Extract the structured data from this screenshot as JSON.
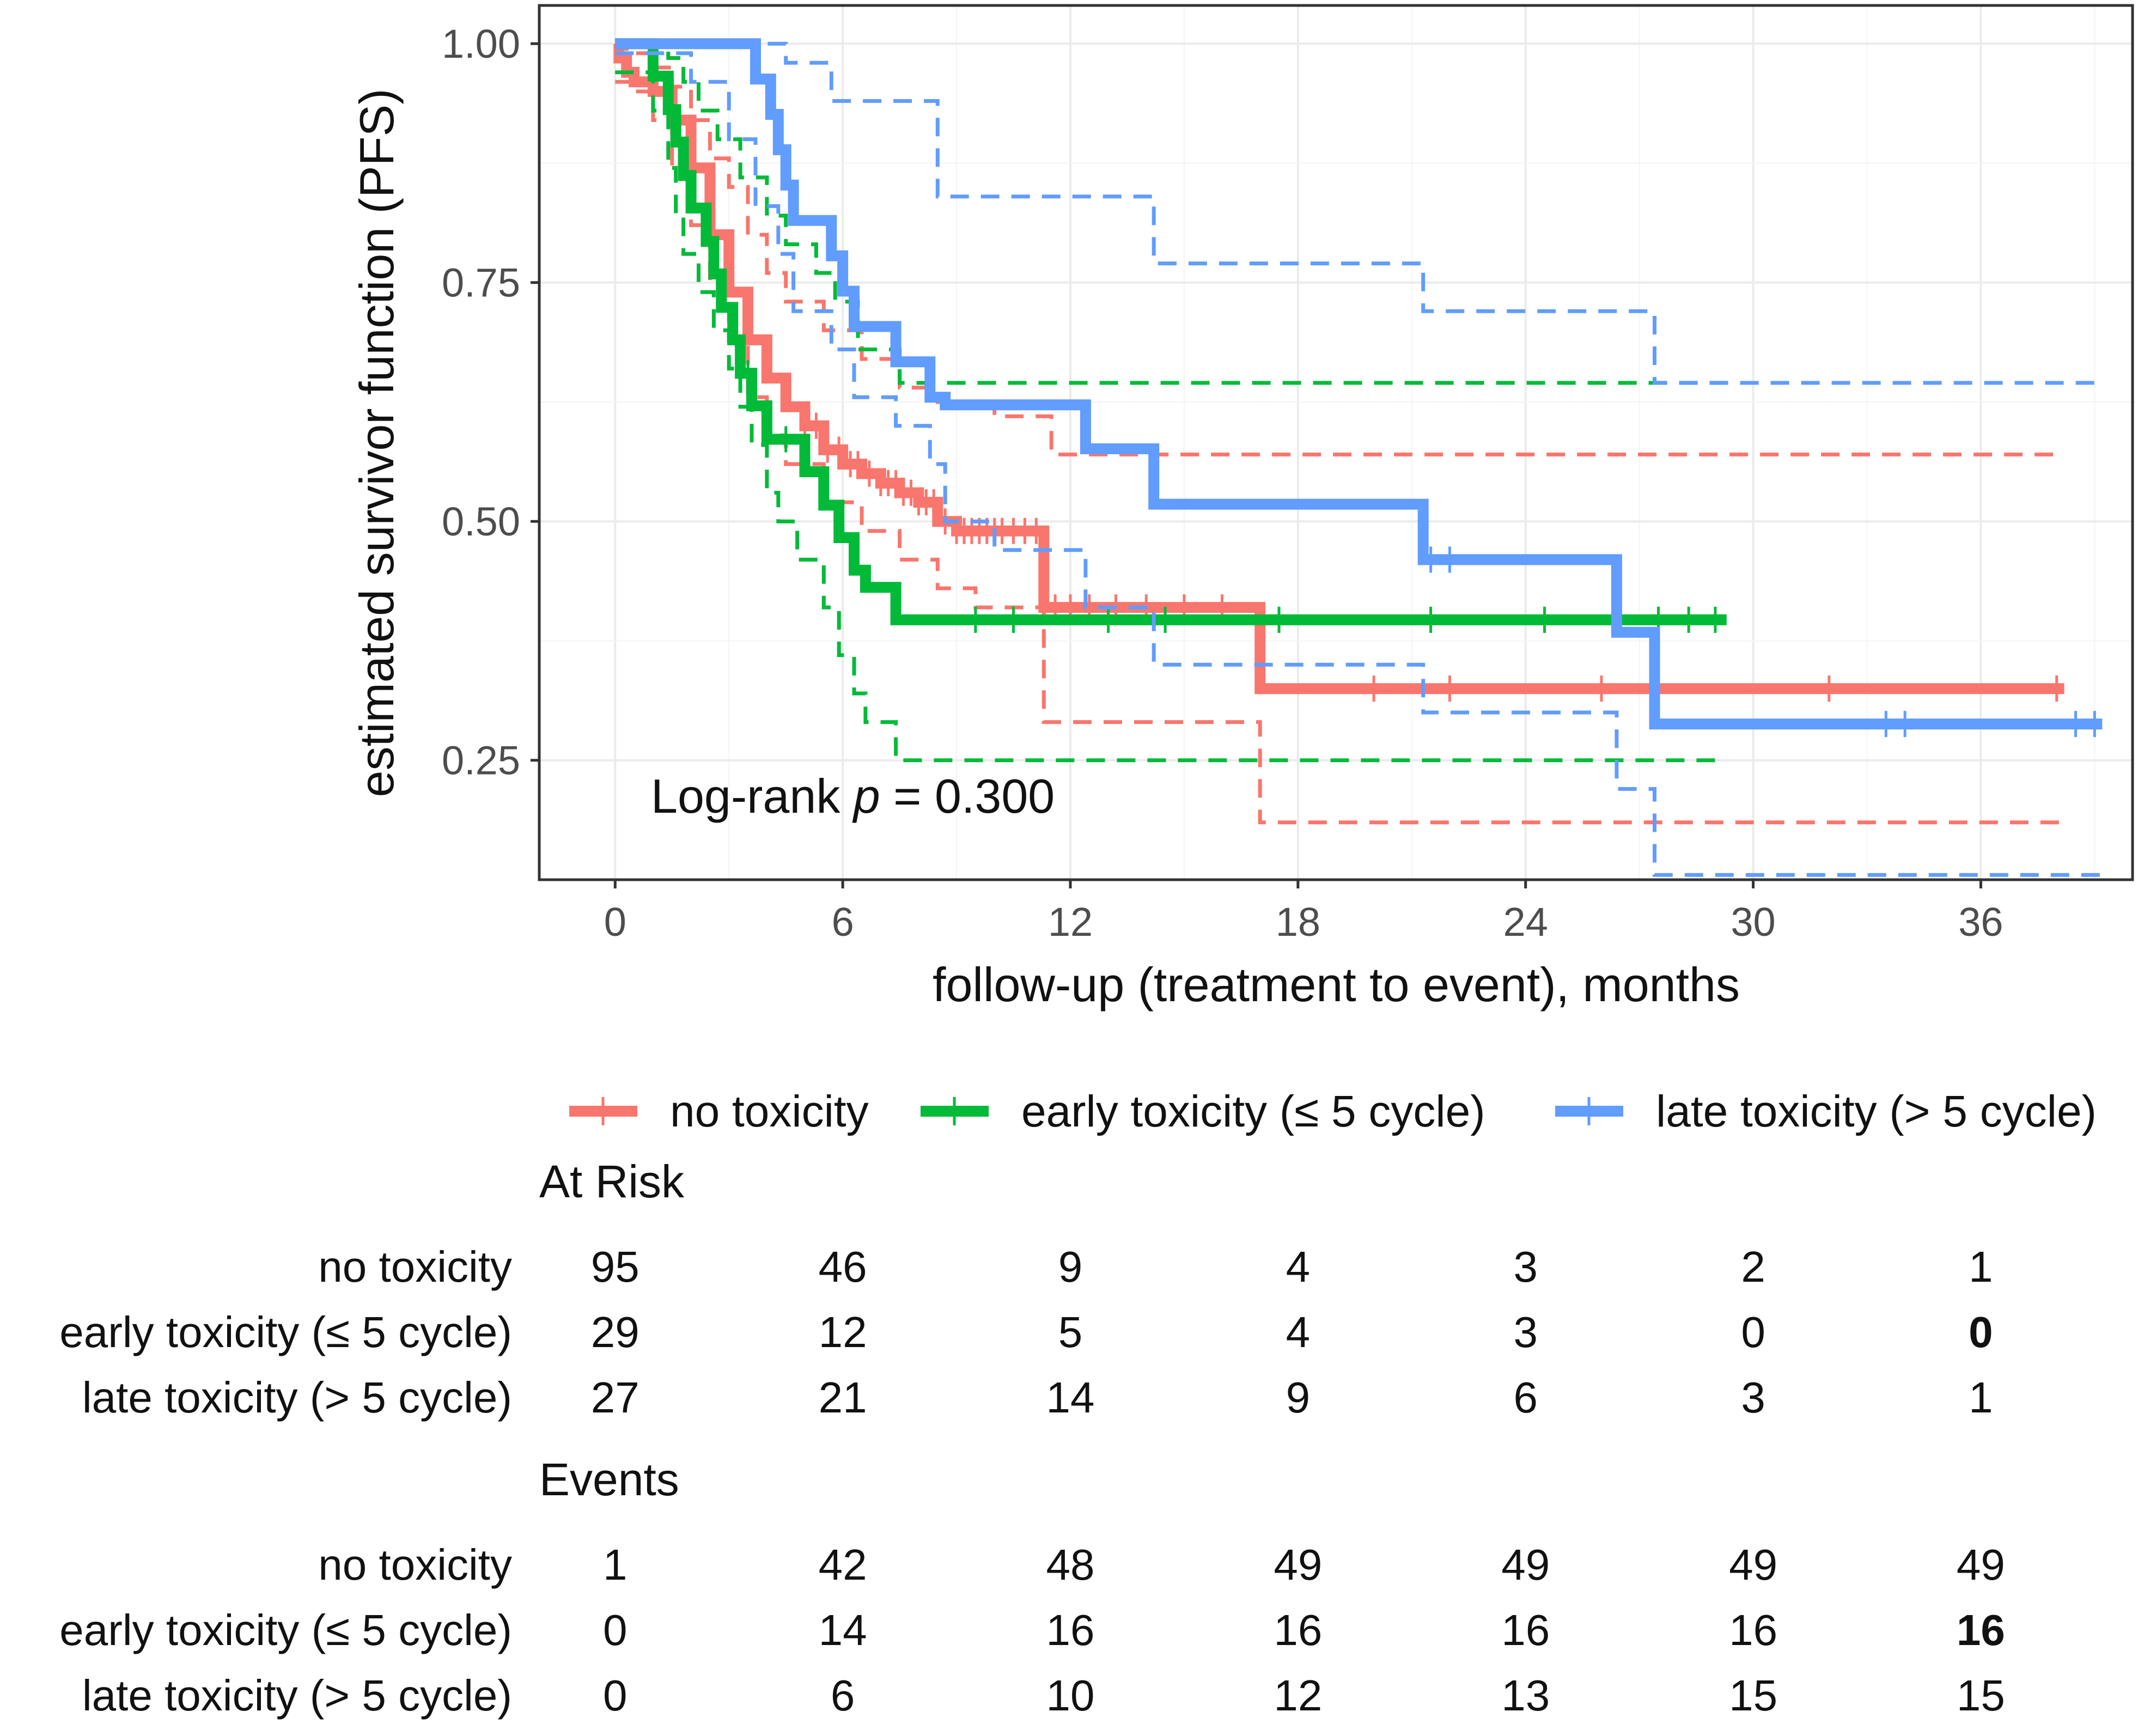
{
  "chart_data": {
    "type": "line",
    "subtype": "kaplan-meier",
    "title": "",
    "xlabel": "follow-up (treatment to event), months",
    "ylabel": "estimated survivor function (PFS)",
    "xlim": [
      -2,
      40
    ],
    "ylim": [
      0.125,
      1.04
    ],
    "x_ticks": [
      0,
      6,
      12,
      18,
      24,
      30,
      36
    ],
    "x_tick_labels": [
      "0",
      "6",
      "12",
      "18",
      "24",
      "30",
      "36"
    ],
    "y_ticks": [
      0.25,
      0.5,
      0.75,
      1.0
    ],
    "y_tick_labels": [
      "0.25",
      "0.50",
      "0.75",
      "1.00"
    ],
    "grid": true,
    "annotation": {
      "prefix": "Log-rank ",
      "italic": "p",
      "suffix": " = 0.300"
    },
    "legend": {
      "position": "bottom"
    },
    "series": [
      {
        "name": "no toxicity",
        "color": "#F8766D",
        "steps": [
          [
            0,
            1.0
          ],
          [
            0.1,
            0.985
          ],
          [
            0.3,
            0.97
          ],
          [
            0.5,
            0.96
          ],
          [
            1,
            0.95
          ],
          [
            1.5,
            0.92
          ],
          [
            2,
            0.87
          ],
          [
            2.5,
            0.8
          ],
          [
            3,
            0.74
          ],
          [
            3.5,
            0.69
          ],
          [
            4,
            0.65
          ],
          [
            4.5,
            0.62
          ],
          [
            5,
            0.6
          ],
          [
            5.5,
            0.575
          ],
          [
            6,
            0.56
          ],
          [
            6.5,
            0.55
          ],
          [
            7,
            0.54
          ],
          [
            7.5,
            0.53
          ],
          [
            8,
            0.52
          ],
          [
            8.5,
            0.5
          ],
          [
            9,
            0.49
          ],
          [
            11.3,
            0.41
          ],
          [
            17,
            0.325
          ]
        ],
        "end": 38.2,
        "upper": [
          [
            0,
            1.0
          ],
          [
            0.3,
            0.99
          ],
          [
            1,
            0.975
          ],
          [
            1.5,
            0.955
          ],
          [
            2,
            0.92
          ],
          [
            2.5,
            0.88
          ],
          [
            3,
            0.85
          ],
          [
            3.5,
            0.8
          ],
          [
            4,
            0.76
          ],
          [
            4.5,
            0.73
          ],
          [
            5.5,
            0.7
          ],
          [
            6.5,
            0.67
          ],
          [
            7.5,
            0.64
          ],
          [
            8.5,
            0.625
          ],
          [
            10,
            0.61
          ],
          [
            11.5,
            0.57
          ]
        ],
        "upper_end": 38.2,
        "lower": [
          [
            0,
            0.96
          ],
          [
            0.5,
            0.95
          ],
          [
            1,
            0.92
          ],
          [
            1.5,
            0.87
          ],
          [
            2,
            0.81
          ],
          [
            2.5,
            0.75
          ],
          [
            3,
            0.69
          ],
          [
            3.5,
            0.63
          ],
          [
            4,
            0.59
          ],
          [
            4.5,
            0.56
          ],
          [
            5.5,
            0.52
          ],
          [
            6.5,
            0.49
          ],
          [
            7.5,
            0.46
          ],
          [
            8.5,
            0.43
          ],
          [
            9.5,
            0.41
          ],
          [
            11.3,
            0.29
          ],
          [
            17,
            0.185
          ]
        ],
        "lower_end": 38.2,
        "censor": [
          5,
          5.3,
          5.6,
          5.9,
          6.2,
          6.4,
          6.7,
          7,
          7.2,
          7.4,
          7.6,
          7.8,
          8,
          8.2,
          8.4,
          8.7,
          9,
          9.2,
          9.4,
          9.6,
          9.8,
          10,
          10.2,
          10.5,
          10.8,
          11.1,
          11.6,
          12,
          12.5,
          13.2,
          14,
          15,
          16,
          20,
          22,
          26,
          32,
          38
        ]
      },
      {
        "name": "early toxicity (≤ 5 cycle)",
        "color": "#00BA38",
        "steps": [
          [
            0,
            1.0
          ],
          [
            1,
            0.966
          ],
          [
            1.4,
            0.931
          ],
          [
            1.6,
            0.897
          ],
          [
            1.8,
            0.862
          ],
          [
            2,
            0.828
          ],
          [
            2.4,
            0.793
          ],
          [
            2.6,
            0.759
          ],
          [
            2.8,
            0.724
          ],
          [
            3.1,
            0.69
          ],
          [
            3.3,
            0.655
          ],
          [
            3.6,
            0.621
          ],
          [
            4,
            0.586
          ],
          [
            5,
            0.552
          ],
          [
            5.5,
            0.517
          ],
          [
            5.9,
            0.483
          ],
          [
            6.3,
            0.449
          ],
          [
            6.6,
            0.431
          ],
          [
            7.4,
            0.397
          ]
        ],
        "end": 29.3,
        "upper": [
          [
            0,
            1.0
          ],
          [
            1.4,
            0.985
          ],
          [
            1.8,
            0.96
          ],
          [
            2.2,
            0.93
          ],
          [
            2.7,
            0.9
          ],
          [
            3.3,
            0.86
          ],
          [
            4,
            0.82
          ],
          [
            4.5,
            0.79
          ],
          [
            5.3,
            0.76
          ],
          [
            5.8,
            0.73
          ],
          [
            6.4,
            0.68
          ],
          [
            7.5,
            0.645
          ]
        ],
        "upper_end": 29.3,
        "lower": [
          [
            0,
            0.97
          ],
          [
            1,
            0.93
          ],
          [
            1.4,
            0.87
          ],
          [
            1.6,
            0.82
          ],
          [
            1.8,
            0.78
          ],
          [
            2.2,
            0.74
          ],
          [
            2.6,
            0.7
          ],
          [
            3,
            0.66
          ],
          [
            3.3,
            0.62
          ],
          [
            3.6,
            0.58
          ],
          [
            4,
            0.53
          ],
          [
            4.3,
            0.5
          ],
          [
            4.8,
            0.46
          ],
          [
            5.5,
            0.41
          ],
          [
            5.9,
            0.36
          ],
          [
            6.3,
            0.32
          ],
          [
            6.6,
            0.29
          ],
          [
            7.4,
            0.25
          ]
        ],
        "lower_end": 29.3,
        "censor": [
          3.5,
          4.5,
          9.5,
          10.5,
          13,
          14.5,
          17.5,
          21.5,
          24.5,
          26.5,
          27.5,
          28.3,
          29
        ]
      },
      {
        "name": "late toxicity (> 5 cycle)",
        "color": "#619CFF",
        "steps": [
          [
            0,
            1.0
          ],
          [
            3.7,
            0.963
          ],
          [
            4.1,
            0.926
          ],
          [
            4.3,
            0.889
          ],
          [
            4.5,
            0.852
          ],
          [
            4.7,
            0.815
          ],
          [
            5.7,
            0.778
          ],
          [
            6,
            0.741
          ],
          [
            6.3,
            0.704
          ],
          [
            7.4,
            0.667
          ],
          [
            8.3,
            0.63
          ],
          [
            8.7,
            0.622
          ],
          [
            12.4,
            0.576
          ],
          [
            14.2,
            0.518
          ],
          [
            21.3,
            0.46
          ],
          [
            26.4,
            0.384
          ],
          [
            27.4,
            0.288
          ]
        ],
        "end": 39.2,
        "upper": [
          [
            0,
            1.0
          ],
          [
            4.5,
            0.98
          ],
          [
            5.7,
            0.94
          ],
          [
            8.5,
            0.84
          ],
          [
            14.2,
            0.77
          ],
          [
            21.3,
            0.72
          ],
          [
            27.4,
            0.645
          ]
        ],
        "upper_end": 39.2,
        "lower": [
          [
            0,
            0.99
          ],
          [
            2,
            0.96
          ],
          [
            3,
            0.9
          ],
          [
            3.7,
            0.83
          ],
          [
            4.3,
            0.78
          ],
          [
            4.7,
            0.72
          ],
          [
            5.7,
            0.68
          ],
          [
            6.3,
            0.63
          ],
          [
            7.4,
            0.6
          ],
          [
            8.3,
            0.56
          ],
          [
            8.7,
            0.5
          ],
          [
            10,
            0.47
          ],
          [
            12.4,
            0.41
          ],
          [
            14.2,
            0.35
          ],
          [
            21.3,
            0.3
          ],
          [
            26.4,
            0.22
          ],
          [
            27.4,
            0.13
          ]
        ],
        "lower_end": 39.2,
        "censor": [
          21.5,
          22,
          33.5,
          34,
          38.5,
          39
        ]
      }
    ],
    "risk_table_x": [
      0,
      6,
      12,
      18,
      24,
      30,
      36
    ],
    "risk_tables": [
      {
        "title": "At Risk",
        "rows": [
          {
            "label": "no toxicity",
            "values": [
              "95",
              "46",
              "9",
              "4",
              "3",
              "2",
              "1"
            ]
          },
          {
            "label": "early toxicity (≤ 5 cycle)",
            "values": [
              "29",
              "12",
              "5",
              "4",
              "3",
              "0",
              "0"
            ]
          },
          {
            "label": "late toxicity (> 5 cycle)",
            "values": [
              "27",
              "21",
              "14",
              "9",
              "6",
              "3",
              "1"
            ]
          }
        ]
      },
      {
        "title": "Events",
        "rows": [
          {
            "label": "no toxicity",
            "values": [
              "1",
              "42",
              "48",
              "49",
              "49",
              "49",
              "49"
            ]
          },
          {
            "label": "early toxicity (≤ 5 cycle)",
            "values": [
              "0",
              "14",
              "16",
              "16",
              "16",
              "16",
              "16"
            ]
          },
          {
            "label": "late toxicity (> 5 cycle)",
            "values": [
              "0",
              "6",
              "10",
              "12",
              "13",
              "15",
              "15"
            ]
          }
        ]
      }
    ]
  }
}
